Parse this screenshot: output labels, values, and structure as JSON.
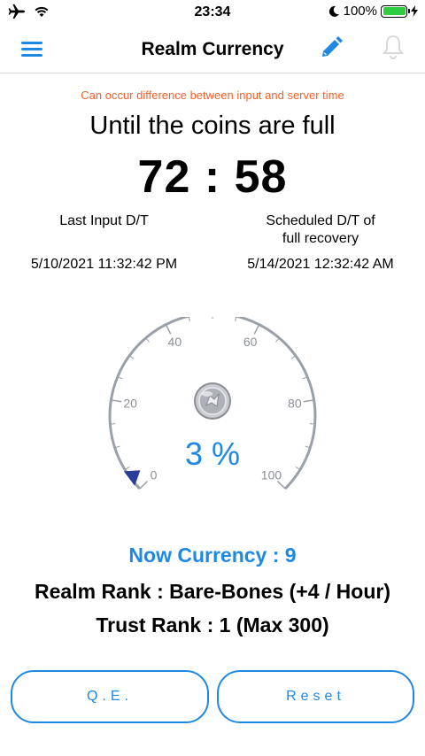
{
  "status_bar": {
    "time": "23:34",
    "battery_percent": "100%",
    "icons": [
      "airplane-icon",
      "wifi-icon",
      "moon-icon",
      "battery-icon",
      "charging-icon"
    ]
  },
  "nav": {
    "title": "Realm Currency",
    "icons": [
      "menu-icon",
      "edit-pencil-icon",
      "bell-icon"
    ]
  },
  "notice": "Can occur difference between input and server time",
  "headline": "Until the coins are full",
  "countdown": "72 : 58",
  "last_input": {
    "label": "Last Input D/T",
    "value": "5/10/2021 11:32:42 PM"
  },
  "scheduled": {
    "label_line1": "Scheduled D/T of",
    "label_line2": "full recovery",
    "value": "5/14/2021 12:32:42 AM"
  },
  "gauge": {
    "ticks": [
      "0",
      "20",
      "40",
      "60",
      "80",
      "100"
    ],
    "value_fraction": 0.03,
    "percent_label": "3 %"
  },
  "now_currency": "Now Currency : 9",
  "realm_rank": "Realm Rank : Bare-Bones (+4 / Hour)",
  "trust_rank": "Trust Rank : 1 (Max 300)",
  "buttons": {
    "qe": "Q.E.",
    "reset": "Reset"
  },
  "colors": {
    "accent": "#1e88e5",
    "notice": "#f0622d",
    "gauge_arc": "#9aa0a8",
    "needle": "#2b3d9c",
    "battery": "#2ecc40"
  }
}
